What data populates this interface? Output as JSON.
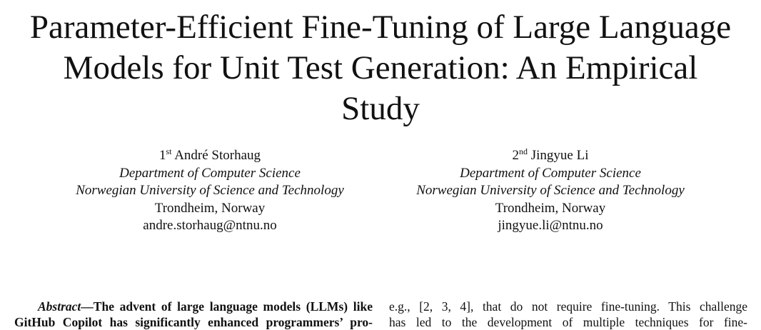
{
  "paper": {
    "title_lines": [
      "Parameter-Efficient Fine-Tuning of Large Language",
      "Models for Unit Test Generation: An Empirical",
      "Study"
    ],
    "authors": [
      {
        "ordinal": "1",
        "ordinal_suffix": "st",
        "name": "André Storhaug",
        "department": "Department of Computer Science",
        "university": "Norwegian University of Science and Technology",
        "location": "Trondheim, Norway",
        "email": "andre.storhaug@ntnu.no"
      },
      {
        "ordinal": "2",
        "ordinal_suffix": "nd",
        "name": "Jingyue Li",
        "department": "Department of Computer Science",
        "university": "Norwegian University of Science and Technology",
        "location": "Trondheim, Norway",
        "email": "jingyue.li@ntnu.no"
      }
    ],
    "abstract": {
      "label": "Abstract",
      "dash": "—",
      "line1": "The advent of large language models (LLMs) like",
      "line2": "GitHub Copilot has significantly enhanced programmers’ pro-"
    },
    "right_column": {
      "line1": "e.g., [2, 3, 4], that do not require fine-tuning. This challenge",
      "line2": "has led to the development of multiple techniques for fine-"
    }
  }
}
